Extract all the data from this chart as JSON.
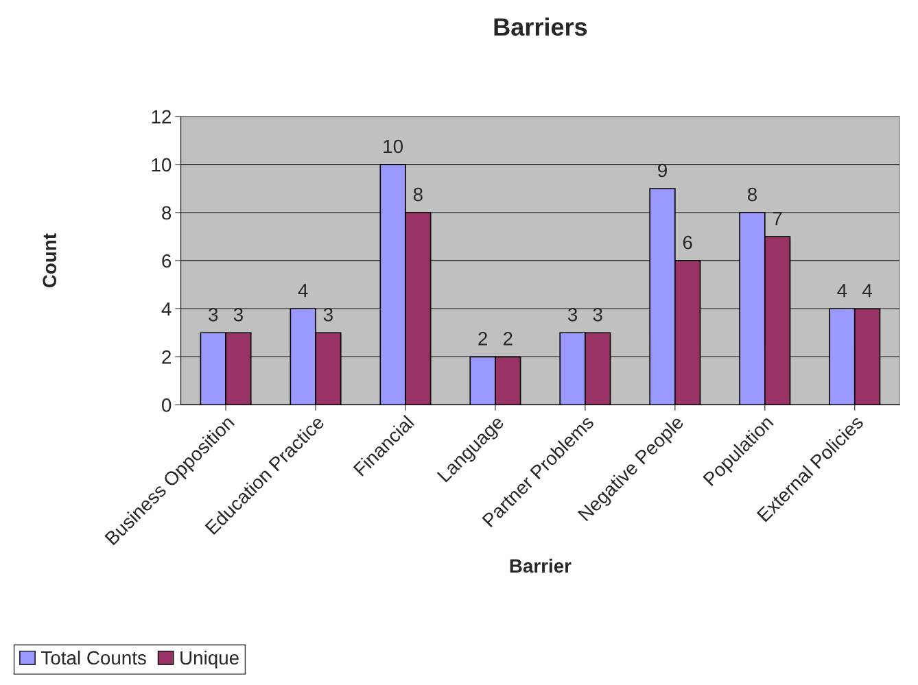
{
  "chart_data": {
    "type": "bar",
    "title": "Barriers",
    "xlabel": "Barrier",
    "ylabel": "Count",
    "categories": [
      "Business Opposition",
      "Education Practice",
      "Financial",
      "Language",
      "Partner Problems",
      "Negative People",
      "Population",
      "External Policies"
    ],
    "series": [
      {
        "name": "Total Counts",
        "color": "#9999ff",
        "values": [
          3,
          4,
          10,
          2,
          3,
          9,
          8,
          4
        ]
      },
      {
        "name": "Unique",
        "color": "#993366",
        "values": [
          3,
          3,
          8,
          2,
          3,
          6,
          7,
          4
        ]
      }
    ],
    "ylim": [
      0,
      12
    ],
    "yticks": [
      0,
      2,
      4,
      6,
      8,
      10,
      12
    ],
    "grid": "y",
    "legend": "bottom left",
    "data_labels": true
  }
}
